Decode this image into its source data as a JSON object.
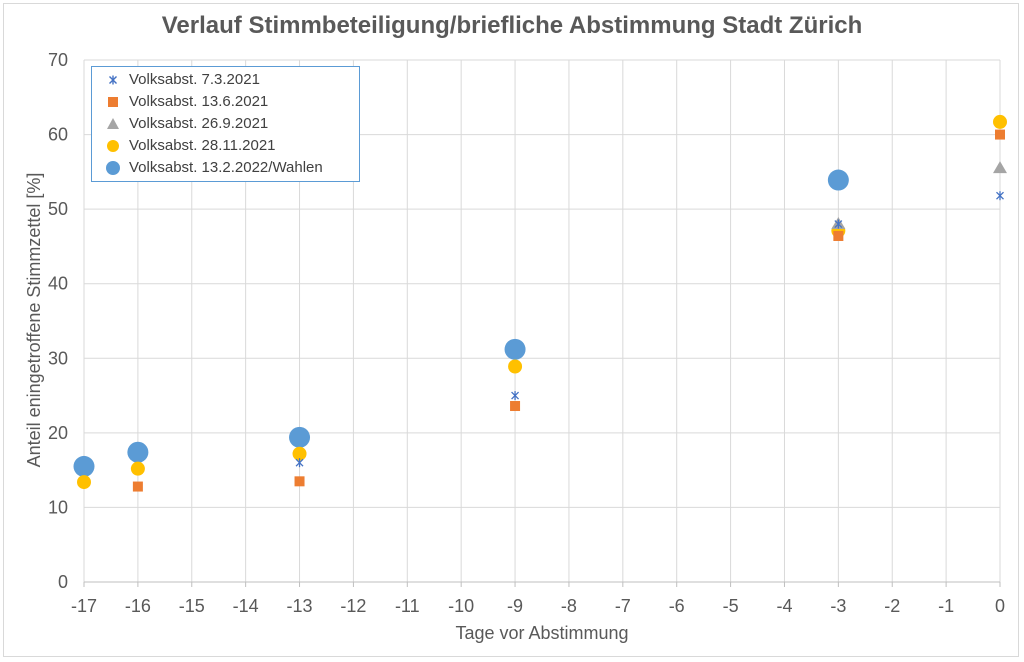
{
  "chart_data": {
    "type": "scatter",
    "title": "Verlauf Stimmbeteiligung/briefliche Abstimmung Stadt Zürich",
    "xlabel": "Tage vor Abstimmung",
    "ylabel": "Anteil eningetroffene Stimmzettel [%]",
    "xlim": [
      -17,
      0
    ],
    "ylim": [
      0,
      70
    ],
    "xticks": [
      "-17",
      "-16",
      "-15",
      "-14",
      "-13",
      "-12",
      "-11",
      "-10",
      "-9",
      "-8",
      "-7",
      "-6",
      "-5",
      "-4",
      "-3",
      "-2",
      "-1",
      "0"
    ],
    "yticks": [
      "0",
      "10",
      "20",
      "30",
      "40",
      "50",
      "60",
      "70"
    ],
    "grid": true,
    "legend_position": "top-left",
    "series": [
      {
        "name": "Volksabst. 7.3.2021",
        "marker": "star",
        "color": "#4472c4",
        "points": [
          {
            "x": -13,
            "y": 16
          },
          {
            "x": -9,
            "y": 25
          },
          {
            "x": -3,
            "y": 48
          },
          {
            "x": 0,
            "y": 51.8
          }
        ]
      },
      {
        "name": "Volksabst. 13.6.2021",
        "marker": "square",
        "color": "#ed7d31",
        "points": [
          {
            "x": -16,
            "y": 12.8
          },
          {
            "x": -13,
            "y": 13.5
          },
          {
            "x": -9,
            "y": 23.6
          },
          {
            "x": -3,
            "y": 46.4
          },
          {
            "x": 0,
            "y": 60
          }
        ]
      },
      {
        "name": "Volksabst. 26.9.2021",
        "marker": "triangle",
        "color": "#a5a5a5",
        "points": [
          {
            "x": -3,
            "y": 48
          },
          {
            "x": 0,
            "y": 55.5
          }
        ]
      },
      {
        "name": "Volksabst. 28.11.2021",
        "marker": "circle",
        "color": "#ffc000",
        "points": [
          {
            "x": -17,
            "y": 13.4
          },
          {
            "x": -16,
            "y": 15.2
          },
          {
            "x": -13,
            "y": 17.2
          },
          {
            "x": -9,
            "y": 28.9
          },
          {
            "x": -3,
            "y": 47.1
          },
          {
            "x": 0,
            "y": 61.7
          }
        ]
      },
      {
        "name": "Volksabst. 13.2.2022/Wahlen",
        "marker": "big-circle",
        "color": "#5b9bd5",
        "points": [
          {
            "x": -17,
            "y": 15.5
          },
          {
            "x": -16,
            "y": 17.4
          },
          {
            "x": -13,
            "y": 19.4
          },
          {
            "x": -9,
            "y": 31.2
          },
          {
            "x": -3,
            "y": 53.9
          }
        ]
      }
    ]
  }
}
